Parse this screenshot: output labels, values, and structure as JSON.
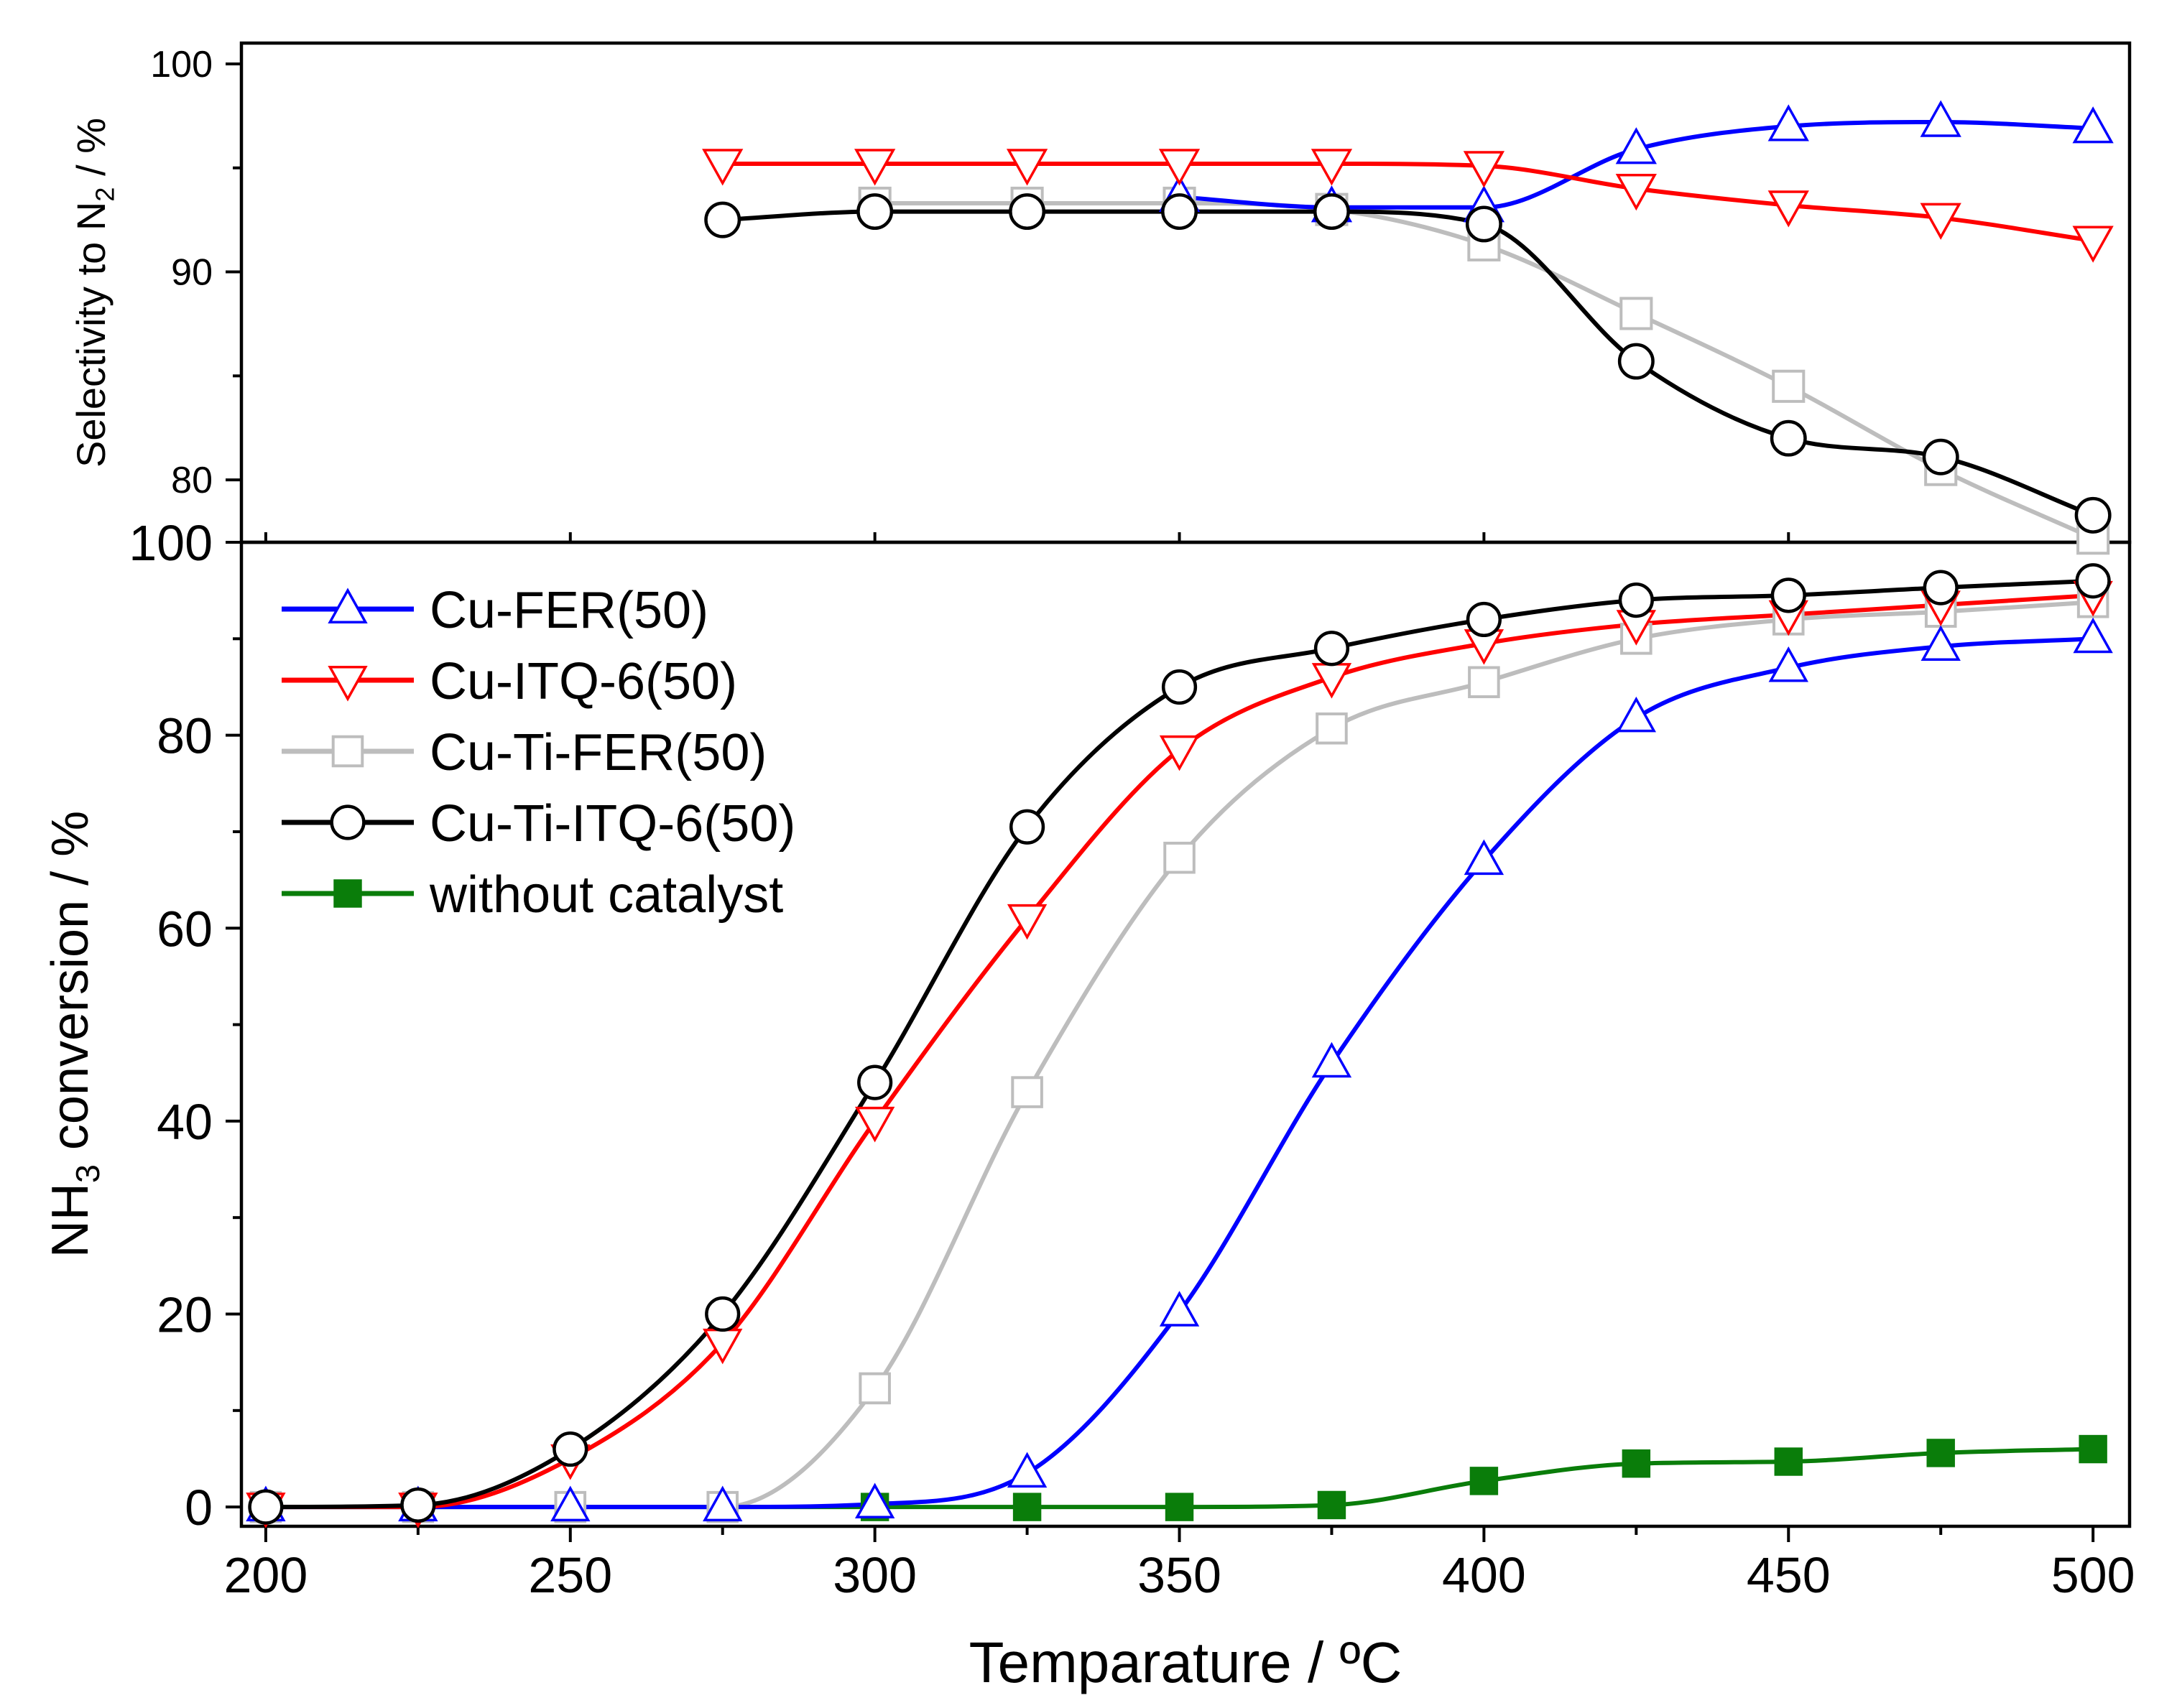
{
  "chart_data": [
    {
      "panel": "selectivity",
      "type": "line",
      "ylabel_main": "Selectivity to N",
      "ylabel_sub": "2",
      "ylabel_tail": " / %",
      "ylim": [
        77,
        101
      ],
      "yticks": [
        80,
        90,
        100
      ],
      "x": [
        200,
        225,
        250,
        275,
        300,
        325,
        350,
        375,
        400,
        425,
        450,
        475,
        500
      ],
      "series": [
        {
          "key": "fer",
          "values": [
            null,
            null,
            null,
            null,
            null,
            null,
            93.6,
            93.1,
            93.1,
            95.9,
            97.0,
            97.2,
            96.9
          ]
        },
        {
          "key": "itq",
          "values": [
            null,
            null,
            null,
            95.2,
            95.2,
            95.2,
            95.2,
            95.2,
            95.1,
            94.0,
            93.2,
            92.6,
            91.5
          ]
        },
        {
          "key": "tifer",
          "values": [
            null,
            null,
            null,
            null,
            93.3,
            93.3,
            93.3,
            93.0,
            91.3,
            88.0,
            84.5,
            80.5,
            77.2
          ]
        },
        {
          "key": "tiitq",
          "values": [
            null,
            null,
            null,
            92.5,
            92.9,
            92.9,
            92.9,
            92.9,
            92.3,
            85.7,
            82.0,
            81.1,
            78.3
          ]
        }
      ]
    },
    {
      "panel": "conversion",
      "type": "line",
      "xlabel": "Temparature / ºC",
      "ylabel_main": "NH",
      "ylabel_sub": "3",
      "ylabel_tail": " conversion / %",
      "xlim": [
        196,
        506
      ],
      "ylim": [
        -2,
        100
      ],
      "xticks": [
        200,
        250,
        300,
        350,
        400,
        450,
        500
      ],
      "yticks": [
        0,
        20,
        40,
        60,
        80,
        100
      ],
      "x": [
        200,
        225,
        250,
        275,
        300,
        325,
        350,
        375,
        400,
        425,
        450,
        475,
        500
      ],
      "series": [
        {
          "key": "fer",
          "name": "Cu-FER(50)",
          "color": "#0000ff",
          "marker": "triangle-up",
          "values": [
            0,
            0,
            0,
            0,
            0.3,
            3.5,
            20.2,
            46.0,
            67.0,
            81.8,
            87.0,
            89.2,
            90.0
          ]
        },
        {
          "key": "itq",
          "name": "Cu-ITQ-6(50)",
          "color": "#ff0000",
          "marker": "triangle-down",
          "values": [
            0,
            0,
            5.0,
            17.0,
            40.0,
            61.0,
            78.5,
            86.0,
            89.5,
            91.5,
            92.5,
            93.5,
            94.5
          ]
        },
        {
          "key": "tifer",
          "name": "Cu-Ti-FER(50)",
          "color": "#bdbdbd",
          "marker": "square-open",
          "values": [
            0,
            0,
            0,
            0,
            12.3,
            43.0,
            67.3,
            80.7,
            85.5,
            90.0,
            92.0,
            92.8,
            93.8
          ]
        },
        {
          "key": "tiitq",
          "name": "Cu-Ti-ITQ-6(50)",
          "color": "#000000",
          "marker": "circle",
          "values": [
            0,
            0.2,
            6.0,
            20.0,
            44.0,
            70.5,
            85.0,
            89.0,
            92.0,
            94.0,
            94.5,
            95.3,
            96.0
          ]
        },
        {
          "key": "none",
          "name": "without catalyst",
          "color": "#0a7d0a",
          "marker": "square-filled",
          "values": [
            0,
            0,
            0,
            0,
            0,
            0,
            0,
            0.2,
            2.7,
            4.5,
            4.7,
            5.6,
            6.0
          ]
        }
      ]
    }
  ]
}
